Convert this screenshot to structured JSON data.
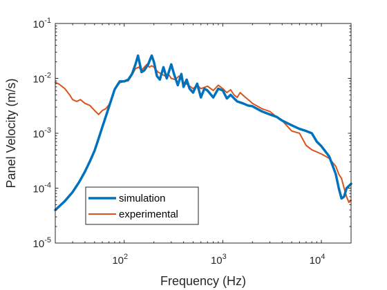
{
  "chart_data": {
    "type": "line",
    "title": "",
    "xlabel": "Frequency (Hz)",
    "ylabel": "Panel Velocity (m/s)",
    "xscale": "log",
    "yscale": "log",
    "xlim": [
      20,
      20000
    ],
    "ylim": [
      1e-05,
      0.1
    ],
    "grid": false,
    "legend_position": "bottom-left",
    "x_ticks": [
      {
        "base": "10",
        "exp": "2"
      },
      {
        "base": "10",
        "exp": "3"
      },
      {
        "base": "10",
        "exp": "4"
      }
    ],
    "y_ticks": [
      {
        "base": "10",
        "exp": "-5"
      },
      {
        "base": "10",
        "exp": "-4"
      },
      {
        "base": "10",
        "exp": "-3"
      },
      {
        "base": "10",
        "exp": "-2"
      },
      {
        "base": "10",
        "exp": "-1"
      }
    ],
    "series": [
      {
        "name": "simulation",
        "color": "#0072BD",
        "width": "thick",
        "x": [
          20,
          25,
          30,
          35,
          40,
          45,
          50,
          55,
          60,
          70,
          80,
          90,
          100,
          110,
          120,
          130,
          138,
          150,
          160,
          175,
          190,
          200,
          215,
          230,
          250,
          270,
          300,
          320,
          350,
          380,
          400,
          430,
          460,
          500,
          550,
          600,
          650,
          700,
          800,
          900,
          1000,
          1100,
          1200,
          1400,
          1600,
          1800,
          2000,
          2500,
          3000,
          3500,
          4000,
          5000,
          6000,
          7000,
          8000,
          9000,
          10000,
          12000,
          14000,
          15000,
          16000,
          17000,
          18000,
          20000
        ],
        "y": [
          4e-05,
          5.8e-05,
          8.5e-05,
          0.00013,
          0.0002,
          0.00031,
          0.00048,
          0.0008,
          0.0013,
          0.003,
          0.0063,
          0.0088,
          0.0088,
          0.0095,
          0.012,
          0.018,
          0.026,
          0.013,
          0.014,
          0.018,
          0.026,
          0.02,
          0.011,
          0.0095,
          0.016,
          0.01,
          0.018,
          0.012,
          0.0075,
          0.012,
          0.007,
          0.0095,
          0.0065,
          0.0055,
          0.008,
          0.0045,
          0.0065,
          0.006,
          0.0045,
          0.0065,
          0.006,
          0.0043,
          0.005,
          0.0038,
          0.0035,
          0.0032,
          0.0031,
          0.0025,
          0.0022,
          0.002,
          0.0017,
          0.0014,
          0.0012,
          0.0011,
          0.001,
          0.0007,
          0.00058,
          0.00038,
          0.00018,
          0.0001,
          6.5e-05,
          7e-05,
          0.0001,
          0.00012
        ]
      },
      {
        "name": "experimental",
        "color": "#D95319",
        "width": "thin",
        "x": [
          20,
          22,
          25,
          28,
          30,
          33,
          36,
          40,
          45,
          50,
          55,
          60,
          65,
          70,
          75,
          80,
          90,
          100,
          110,
          120,
          130,
          140,
          150,
          160,
          170,
          180,
          190,
          200,
          220,
          240,
          260,
          280,
          300,
          330,
          360,
          400,
          450,
          500,
          550,
          600,
          700,
          800,
          900,
          1000,
          1100,
          1200,
          1300,
          1400,
          1500,
          1700,
          1900,
          2000,
          2500,
          3000,
          3500,
          4000,
          5000,
          6000,
          7000,
          8000,
          10000,
          12000,
          14000,
          15000,
          16000,
          17000,
          18000,
          19000,
          20000
        ],
        "y": [
          0.0085,
          0.0078,
          0.0065,
          0.005,
          0.0041,
          0.0038,
          0.0041,
          0.0035,
          0.0032,
          0.0026,
          0.0022,
          0.0026,
          0.0028,
          0.0033,
          0.0045,
          0.0063,
          0.0083,
          0.0088,
          0.009,
          0.0115,
          0.015,
          0.016,
          0.014,
          0.016,
          0.018,
          0.016,
          0.017,
          0.016,
          0.013,
          0.012,
          0.011,
          0.012,
          0.01,
          0.0095,
          0.011,
          0.0085,
          0.0075,
          0.0065,
          0.0075,
          0.0065,
          0.0072,
          0.006,
          0.0075,
          0.0065,
          0.0055,
          0.0062,
          0.005,
          0.0045,
          0.0055,
          0.0045,
          0.0038,
          0.0035,
          0.0028,
          0.0025,
          0.002,
          0.0017,
          0.0011,
          0.001,
          0.0006,
          0.0005,
          0.00042,
          0.00035,
          0.00025,
          0.00018,
          0.00015,
          0.0001,
          7e-05,
          5.5e-05,
          6e-05
        ]
      }
    ]
  }
}
